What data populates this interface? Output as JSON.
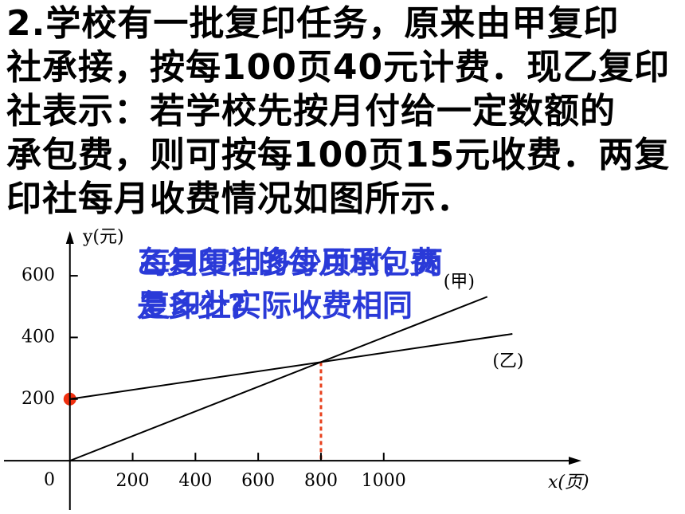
{
  "problem": {
    "lines": [
      "2.学校有一批复印任务，原来由甲复印",
      "社承接，按每100页40元计费．现乙复印",
      "社表示：若学校先按月付给一定数额的",
      "承包费，则可按每100页15元收费．两复",
      "印社每月收费情况如图所示．"
    ]
  },
  "questions": [
    [
      "乙复印社的每月承包费",
      "是多少?"
    ],
    [
      "每月复印多少页时，两",
      "复印社实际收费相同"
    ]
  ],
  "chart_data": {
    "type": "line",
    "x_label": "x(页)",
    "y_label": "y(元)",
    "origin_label": "0",
    "xlim": [
      -210,
      1630
    ],
    "ylim": [
      -160,
      745
    ],
    "xticks": [
      200,
      400,
      600,
      800,
      1000
    ],
    "yticks": [
      200,
      400,
      600
    ],
    "series": [
      {
        "name": "(甲)",
        "color": "#000000",
        "x": [
          0,
          1330
        ],
        "values": [
          0,
          532
        ]
      },
      {
        "name": "(乙)",
        "color": "#000000",
        "x": [
          0,
          1410
        ],
        "values": [
          200,
          411.5
        ]
      }
    ],
    "intersection": {
      "x": 800,
      "y": 320,
      "color": "#e8401c"
    },
    "point": {
      "x": 0,
      "y": 200,
      "color": "#f03010"
    }
  }
}
